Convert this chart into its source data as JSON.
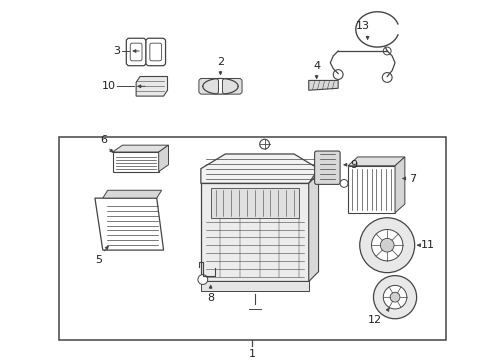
{
  "bg_color": "#ffffff",
  "fig_width": 4.89,
  "fig_height": 3.6,
  "dpi": 100,
  "lc": "#444444",
  "tc": "#222222",
  "lfs": 8.0
}
